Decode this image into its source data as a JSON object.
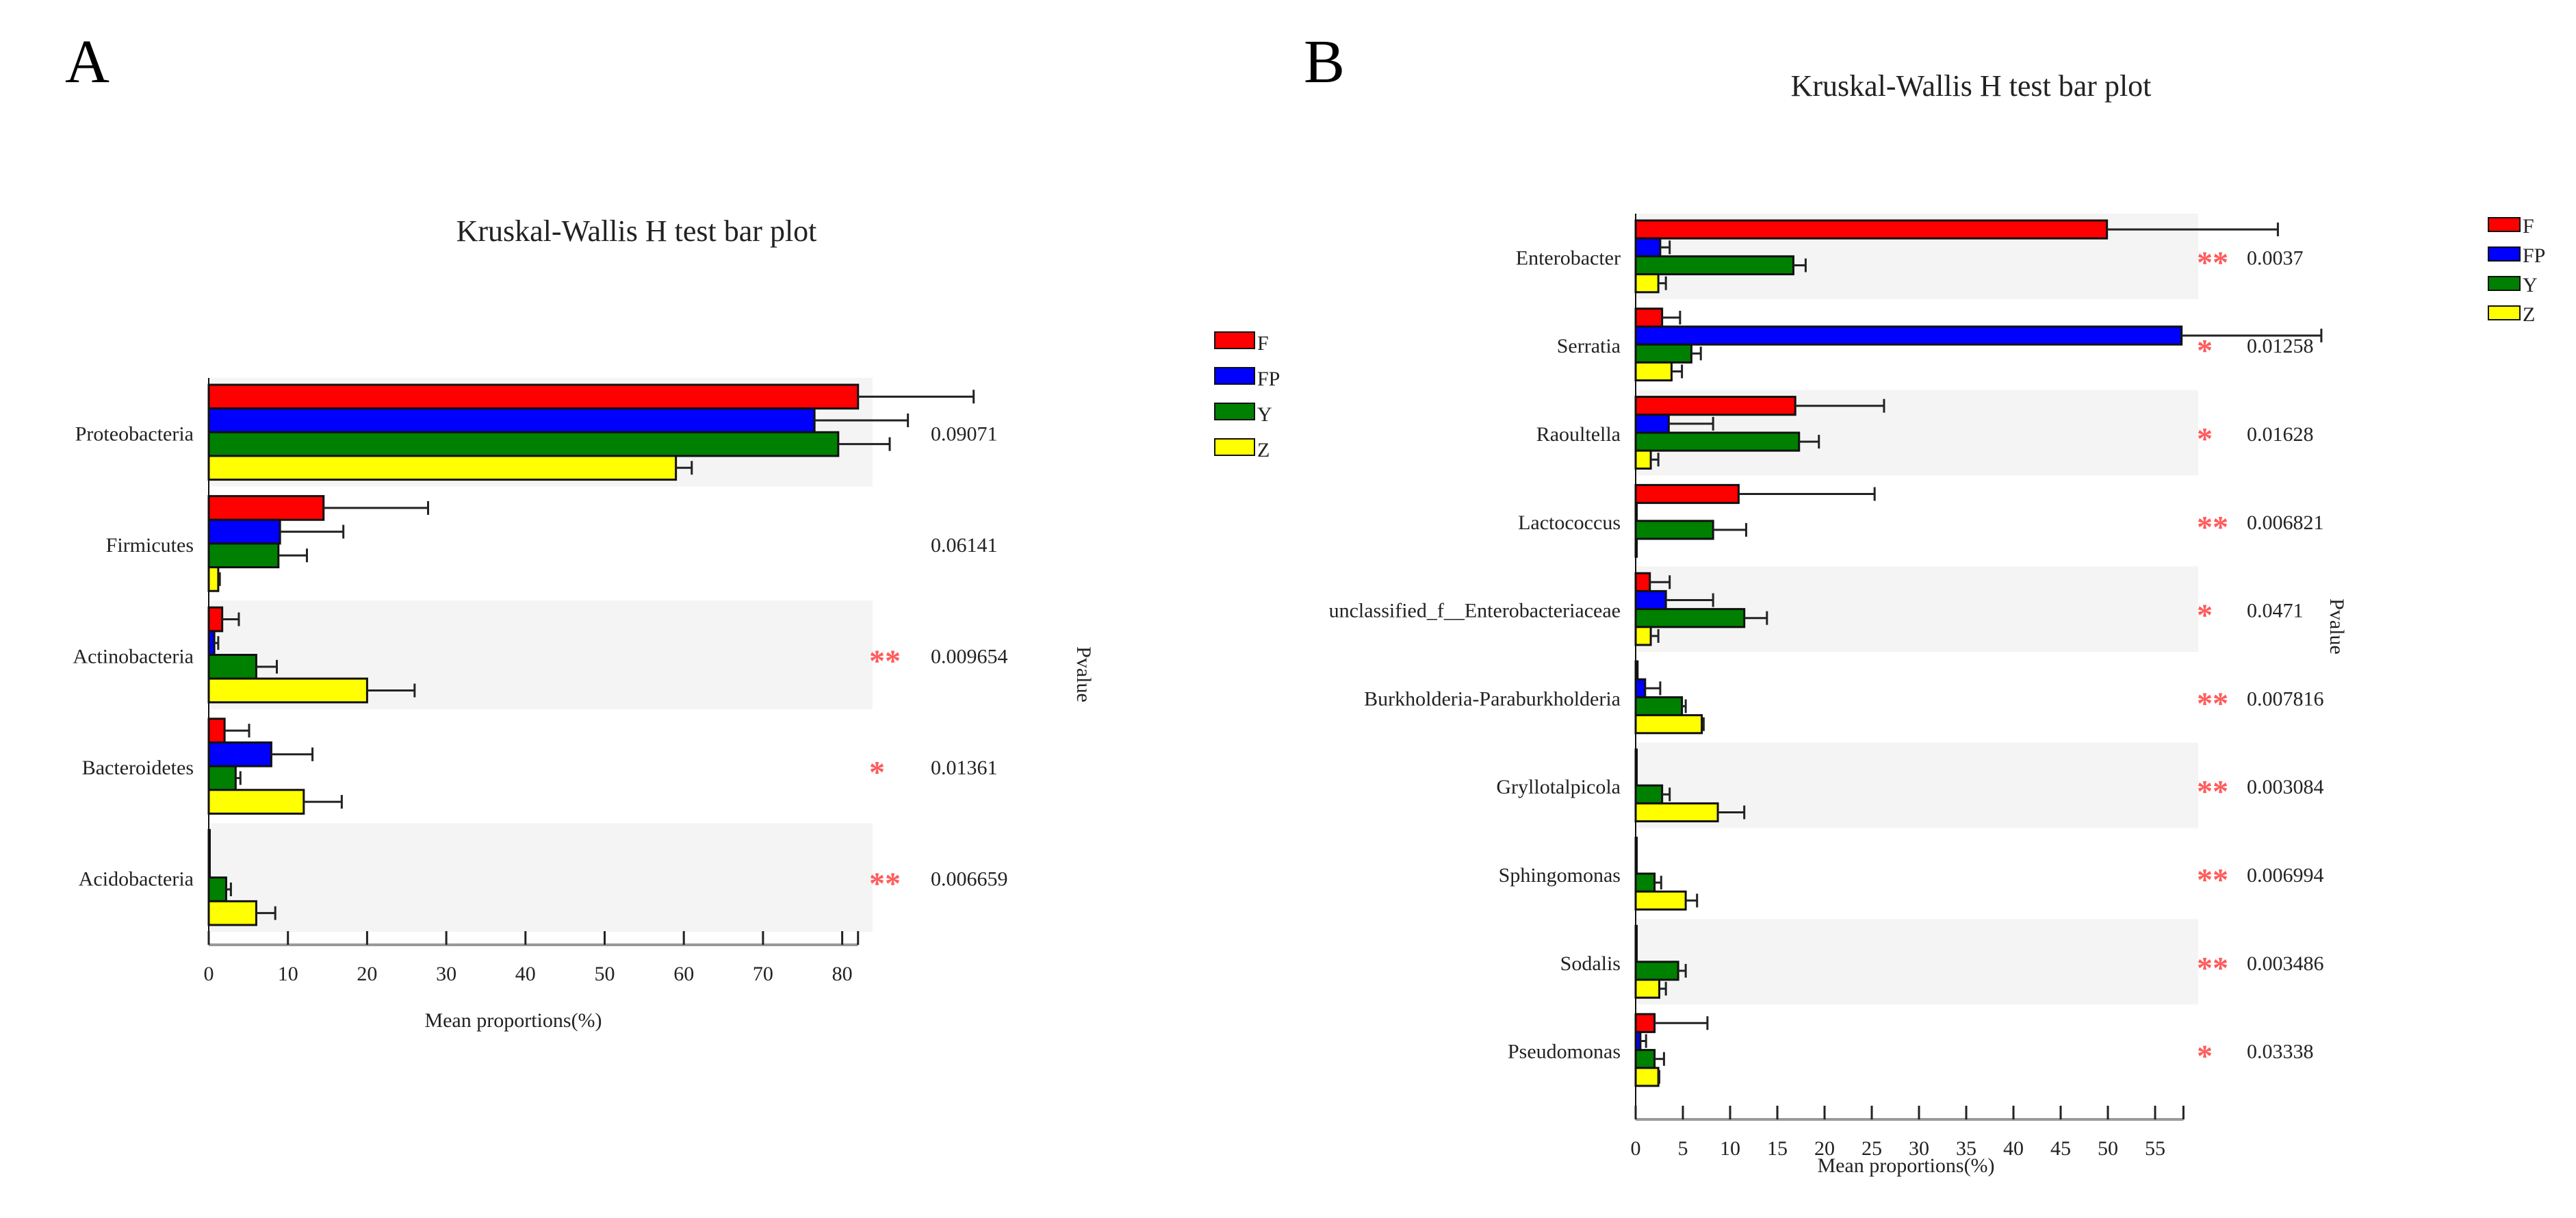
{
  "colors": {
    "F": "#ff0000",
    "FP": "#0000ff",
    "Y": "#008000",
    "Z": "#ffff00",
    "band": "#f4f4f4",
    "star": "#ff5a5a"
  },
  "chart_data": [
    {
      "panel": "A",
      "type": "bar",
      "orientation": "horizontal",
      "title": "Kruskal-Wallis H test bar plot",
      "xlabel": "Mean proportions(%)",
      "ylabel_right": "Pvalue",
      "xlim": [
        0,
        82
      ],
      "xticks": [
        "0",
        "10",
        "20",
        "30",
        "40",
        "50",
        "60",
        "70",
        "80"
      ],
      "legend": [
        "F",
        "FP",
        "Y",
        "Z"
      ],
      "legend_position": "right",
      "categories": [
        "Proteobacteria",
        "Firmicutes",
        "Actinobacteria",
        "Bacteroidetes",
        "Acidobacteria"
      ],
      "pvalues": [
        "0.09071",
        "0.06141",
        "0.009654",
        "0.01361",
        "0.006659"
      ],
      "significance": [
        "",
        "",
        "**",
        "*",
        "**"
      ],
      "series": [
        {
          "name": "F",
          "values": [
            82,
            14.5,
            1.7,
            2,
            0.1
          ],
          "error_upper": [
            96.6,
            27.7,
            3.8,
            5.1,
            0.1
          ]
        },
        {
          "name": "FP",
          "values": [
            76.5,
            9,
            0.7,
            7.9,
            0.1
          ],
          "error_upper": [
            88.3,
            17,
            1.2,
            13.1,
            0.1
          ]
        },
        {
          "name": "Y",
          "values": [
            79.5,
            8.8,
            6,
            3.4,
            2.2
          ],
          "error_upper": [
            86,
            12.4,
            8.6,
            4,
            2.8
          ]
        },
        {
          "name": "Z",
          "values": [
            59,
            1.2,
            20,
            12,
            6
          ],
          "error_upper": [
            61,
            1.4,
            26,
            16.8,
            8.4
          ]
        }
      ]
    },
    {
      "panel": "B",
      "type": "bar",
      "orientation": "horizontal",
      "title": "Kruskal-Wallis H test bar plot",
      "xlabel": "Mean proportions(%)",
      "ylabel_right": "Pvalue",
      "xlim": [
        0,
        58
      ],
      "xticks": [
        "0",
        "5",
        "10",
        "15",
        "20",
        "25",
        "30",
        "35",
        "40",
        "45",
        "50",
        "55"
      ],
      "legend": [
        "F",
        "FP",
        "Y",
        "Z"
      ],
      "legend_position": "top-right",
      "categories": [
        "Enterobacter",
        "Serratia",
        "Raoultella",
        "Lactococcus",
        "unclassified_f__Enterobacteriaceae",
        "Burkholderia-Paraburkholderia",
        "Gryllotalpicola",
        "Sphingomonas",
        "Sodalis",
        "Pseudomonas"
      ],
      "pvalues": [
        "0.0037",
        "0.01258",
        "0.01628",
        "0.006821",
        "0.0471",
        "0.007816",
        "0.003084",
        "0.006994",
        "0.003486",
        "0.03338"
      ],
      "significance": [
        "**",
        "*",
        "*",
        "**",
        "*",
        "**",
        "**",
        "**",
        "**",
        "*"
      ],
      "series": [
        {
          "name": "F",
          "values": [
            49.9,
            2.8,
            16.9,
            10.9,
            1.5,
            0.2,
            0,
            0.1,
            0.05,
            2.0
          ],
          "error_upper": [
            68,
            4.7,
            26.3,
            25.3,
            3.6,
            0.2,
            0,
            0.1,
            0.05,
            7.6
          ]
        },
        {
          "name": "FP",
          "values": [
            2.6,
            57.8,
            3.5,
            0,
            3.2,
            1.0,
            0,
            0.1,
            0.05,
            0.5
          ],
          "error_upper": [
            3.6,
            72.6,
            8.2,
            0,
            8.2,
            2.6,
            0,
            0.1,
            0.05,
            1.1
          ]
        },
        {
          "name": "Y",
          "values": [
            16.7,
            5.9,
            17.3,
            8.2,
            11.5,
            4.9,
            2.8,
            2.0,
            4.5,
            2.0
          ],
          "error_upper": [
            18,
            6.9,
            19.4,
            11.7,
            13.9,
            5.3,
            3.6,
            2.7,
            5.3,
            3.0
          ]
        },
        {
          "name": "Z",
          "values": [
            2.4,
            3.8,
            1.6,
            0.1,
            1.6,
            7.0,
            8.7,
            5.3,
            2.5,
            2.4
          ],
          "error_upper": [
            3.2,
            4.9,
            2.4,
            0.1,
            2.4,
            7.2,
            11.5,
            6.5,
            3.2,
            2.5
          ]
        }
      ]
    }
  ]
}
